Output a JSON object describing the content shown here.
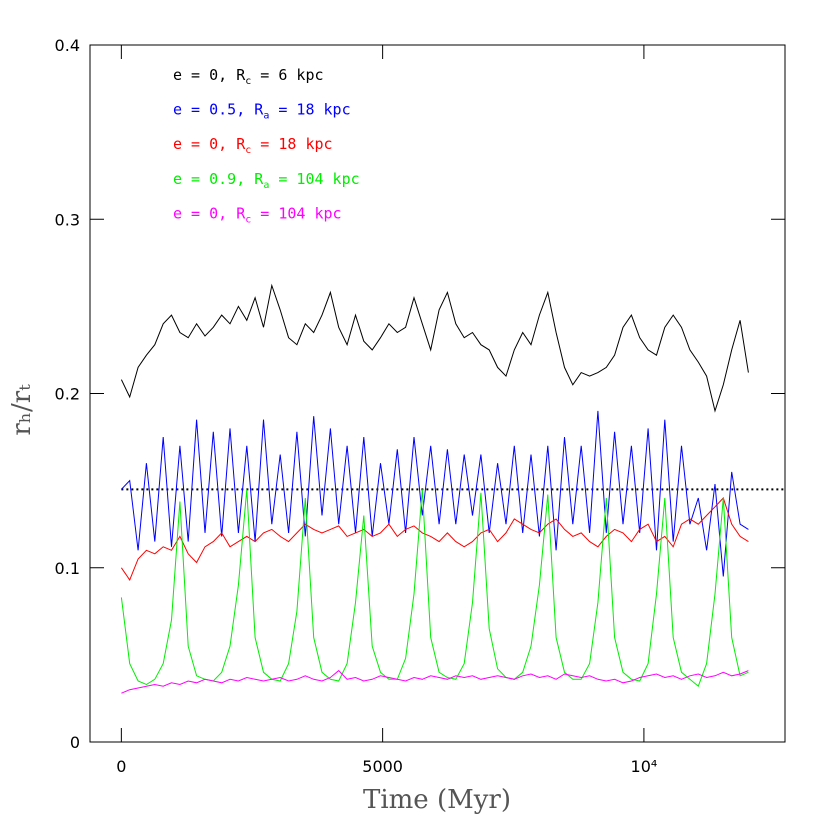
{
  "chart_data": {
    "type": "line",
    "xlabel": "Time (Myr)",
    "ylabel": "rₕ/rₜ",
    "xlim": [
      -600,
      12700
    ],
    "ylim": [
      0,
      0.4
    ],
    "xticks": [
      0,
      5000,
      {
        "value": 10000,
        "label": "10⁴"
      }
    ],
    "yticks": [
      0,
      0.1,
      0.2,
      0.3,
      0.4
    ],
    "hline": 0.145,
    "x": [
      0,
      160,
      320,
      480,
      640,
      800,
      960,
      1120,
      1280,
      1440,
      1600,
      1760,
      1920,
      2080,
      2240,
      2400,
      2560,
      2720,
      2880,
      3040,
      3200,
      3360,
      3520,
      3680,
      3840,
      4000,
      4160,
      4320,
      4480,
      4640,
      4800,
      4960,
      5120,
      5280,
      5440,
      5600,
      5760,
      5920,
      6080,
      6240,
      6400,
      6560,
      6720,
      6880,
      7040,
      7200,
      7360,
      7520,
      7680,
      7840,
      8000,
      8160,
      8320,
      8480,
      8640,
      8800,
      8960,
      9120,
      9280,
      9440,
      9600,
      9760,
      9920,
      10080,
      10240,
      10400,
      10560,
      10720,
      10880,
      11040,
      11200,
      11360,
      11520,
      11680,
      11840,
      12000
    ],
    "series": [
      {
        "name": "e = 0, Rc = 6 kpc",
        "color": "#000000",
        "values": [
          0.208,
          0.198,
          0.215,
          0.222,
          0.228,
          0.24,
          0.245,
          0.235,
          0.232,
          0.24,
          0.233,
          0.238,
          0.245,
          0.24,
          0.25,
          0.242,
          0.255,
          0.238,
          0.262,
          0.248,
          0.232,
          0.228,
          0.24,
          0.235,
          0.245,
          0.258,
          0.238,
          0.228,
          0.245,
          0.23,
          0.225,
          0.232,
          0.24,
          0.235,
          0.238,
          0.255,
          0.24,
          0.225,
          0.248,
          0.258,
          0.24,
          0.232,
          0.235,
          0.228,
          0.225,
          0.215,
          0.21,
          0.225,
          0.235,
          0.228,
          0.245,
          0.258,
          0.235,
          0.215,
          0.205,
          0.212,
          0.21,
          0.212,
          0.215,
          0.222,
          0.238,
          0.245,
          0.232,
          0.225,
          0.222,
          0.238,
          0.245,
          0.238,
          0.225,
          0.218,
          0.21,
          0.19,
          0.205,
          0.225,
          0.242,
          0.212
        ]
      },
      {
        "name": "e = 0.5, Ra = 18 kpc",
        "color": "#0000ff",
        "values": [
          0.145,
          0.15,
          0.11,
          0.16,
          0.115,
          0.175,
          0.112,
          0.17,
          0.115,
          0.185,
          0.12,
          0.178,
          0.118,
          0.18,
          0.12,
          0.17,
          0.115,
          0.185,
          0.125,
          0.165,
          0.12,
          0.178,
          0.118,
          0.187,
          0.13,
          0.18,
          0.125,
          0.17,
          0.12,
          0.175,
          0.118,
          0.16,
          0.125,
          0.168,
          0.12,
          0.175,
          0.13,
          0.17,
          0.125,
          0.168,
          0.125,
          0.165,
          0.13,
          0.165,
          0.12,
          0.16,
          0.125,
          0.17,
          0.12,
          0.165,
          0.118,
          0.17,
          0.11,
          0.175,
          0.125,
          0.17,
          0.12,
          0.19,
          0.12,
          0.178,
          0.125,
          0.17,
          0.12,
          0.18,
          0.11,
          0.185,
          0.115,
          0.17,
          0.125,
          0.14,
          0.11,
          0.148,
          0.095,
          0.155,
          0.125,
          0.122
        ]
      },
      {
        "name": "e = 0, Rc = 18 kpc",
        "color": "#ff0000",
        "values": [
          0.1,
          0.093,
          0.105,
          0.11,
          0.108,
          0.112,
          0.11,
          0.118,
          0.108,
          0.103,
          0.112,
          0.115,
          0.12,
          0.112,
          0.115,
          0.118,
          0.115,
          0.12,
          0.122,
          0.118,
          0.115,
          0.12,
          0.125,
          0.122,
          0.12,
          0.122,
          0.124,
          0.118,
          0.12,
          0.122,
          0.118,
          0.12,
          0.125,
          0.118,
          0.122,
          0.124,
          0.12,
          0.118,
          0.115,
          0.12,
          0.115,
          0.112,
          0.115,
          0.12,
          0.122,
          0.115,
          0.12,
          0.128,
          0.125,
          0.122,
          0.12,
          0.125,
          0.128,
          0.122,
          0.118,
          0.12,
          0.115,
          0.112,
          0.118,
          0.122,
          0.12,
          0.115,
          0.122,
          0.125,
          0.115,
          0.118,
          0.112,
          0.125,
          0.128,
          0.125,
          0.13,
          0.135,
          0.14,
          0.125,
          0.118,
          0.115
        ]
      },
      {
        "name": "e = 0.9, Ra = 104 kpc",
        "color": "#00ee00",
        "values": [
          0.083,
          0.045,
          0.035,
          0.033,
          0.036,
          0.045,
          0.07,
          0.138,
          0.055,
          0.038,
          0.036,
          0.035,
          0.04,
          0.055,
          0.09,
          0.145,
          0.06,
          0.04,
          0.036,
          0.035,
          0.045,
          0.075,
          0.14,
          0.06,
          0.04,
          0.036,
          0.035,
          0.045,
          0.08,
          0.13,
          0.055,
          0.04,
          0.036,
          0.036,
          0.048,
          0.085,
          0.145,
          0.06,
          0.04,
          0.037,
          0.036,
          0.045,
          0.08,
          0.143,
          0.065,
          0.042,
          0.037,
          0.036,
          0.04,
          0.055,
          0.09,
          0.142,
          0.06,
          0.04,
          0.036,
          0.036,
          0.045,
          0.08,
          0.14,
          0.06,
          0.04,
          0.036,
          0.035,
          0.045,
          0.085,
          0.14,
          0.06,
          0.04,
          0.036,
          0.032,
          0.045,
          0.085,
          0.14,
          0.06,
          0.038,
          0.04
        ]
      },
      {
        "name": "e = 0, Rc = 104 kpc",
        "color": "#ff00ff",
        "values": [
          0.028,
          0.03,
          0.031,
          0.032,
          0.033,
          0.032,
          0.034,
          0.033,
          0.035,
          0.034,
          0.036,
          0.035,
          0.034,
          0.036,
          0.035,
          0.037,
          0.036,
          0.035,
          0.036,
          0.037,
          0.035,
          0.036,
          0.038,
          0.036,
          0.035,
          0.037,
          0.041,
          0.036,
          0.037,
          0.035,
          0.036,
          0.038,
          0.037,
          0.036,
          0.035,
          0.037,
          0.036,
          0.038,
          0.037,
          0.036,
          0.038,
          0.037,
          0.038,
          0.036,
          0.037,
          0.038,
          0.037,
          0.036,
          0.038,
          0.039,
          0.037,
          0.038,
          0.036,
          0.039,
          0.038,
          0.037,
          0.038,
          0.036,
          0.035,
          0.036,
          0.034,
          0.035,
          0.037,
          0.038,
          0.039,
          0.037,
          0.038,
          0.036,
          0.038,
          0.039,
          0.037,
          0.038,
          0.04,
          0.038,
          0.039,
          0.041
        ]
      }
    ]
  }
}
